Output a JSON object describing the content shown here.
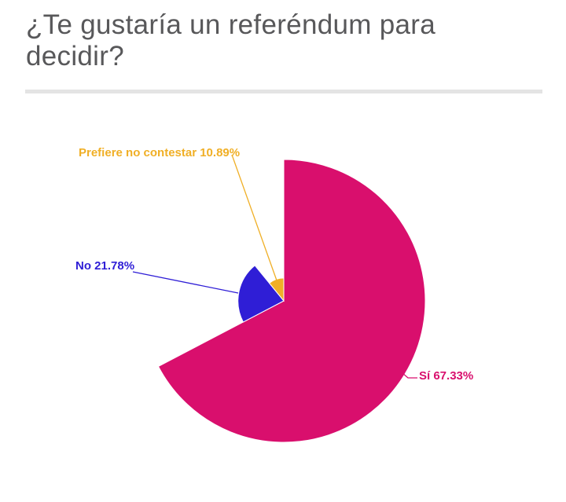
{
  "page": {
    "title": {
      "line1": "¿Te gustaría un referéndum para",
      "line2": "decidir?"
    },
    "title_color": "#58585a",
    "divider_color": "#e4e4e4",
    "background_color": "#ffffff"
  },
  "chart_data": {
    "type": "pie",
    "title": "¿Te gustaría un referéndum para decidir?",
    "unit": "%",
    "total": 100,
    "start_angle": "12-o-clock",
    "direction": "clockwise",
    "radius_mode": "proportional-to-value",
    "legend_position": "outside-callouts",
    "categories": [
      "Sí",
      "No",
      "Prefiere no contestar"
    ],
    "values": [
      67.33,
      21.78,
      10.89
    ],
    "slices": [
      {
        "label": "Sí",
        "value": 67.33,
        "callout": "Sí 67.33%",
        "color": "#d90f6d"
      },
      {
        "label": "No",
        "value": 21.78,
        "callout": "No 21.78%",
        "color": "#2f1ed6"
      },
      {
        "label": "Prefiere no contestar",
        "value": 10.89,
        "callout": "Prefiere no contestar 10.89%",
        "color": "#f0af26"
      }
    ]
  }
}
